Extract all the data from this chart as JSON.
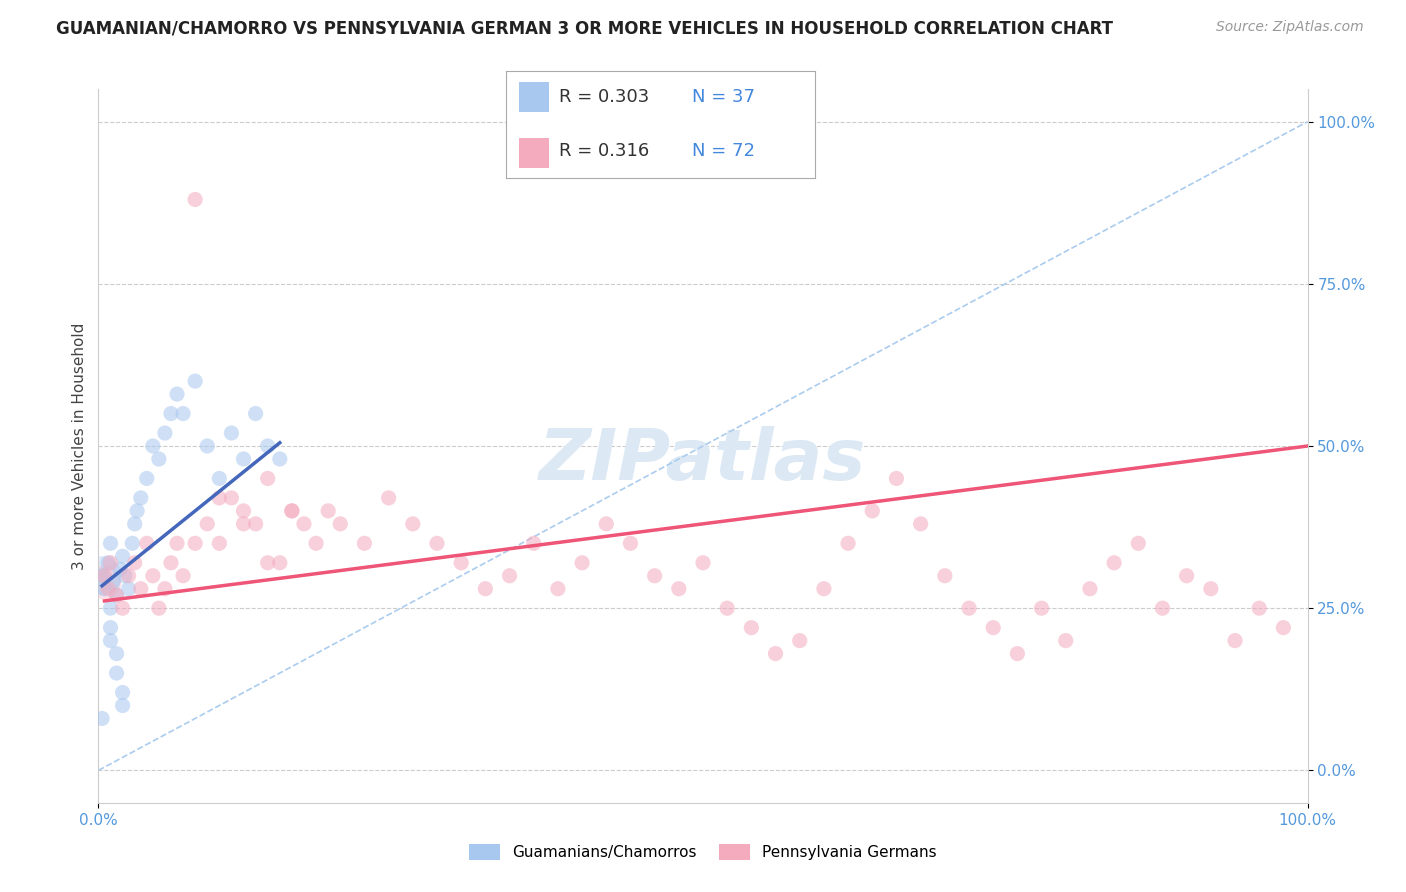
{
  "title": "GUAMANIAN/CHAMORRO VS PENNSYLVANIA GERMAN 3 OR MORE VEHICLES IN HOUSEHOLD CORRELATION CHART",
  "source": "Source: ZipAtlas.com",
  "ylabel": "3 or more Vehicles in Household",
  "xlim": [
    0,
    100
  ],
  "ylim": [
    -5,
    105
  ],
  "yticks": [
    0,
    25,
    50,
    75,
    100
  ],
  "ytick_labels": [
    "0.0%",
    "25.0%",
    "50.0%",
    "75.0%",
    "100.0%"
  ],
  "xtick_labels": [
    "0.0%",
    "100.0%"
  ],
  "legend_blue_r": "R = 0.303",
  "legend_blue_n": "N = 37",
  "legend_pink_r": "R = 0.316",
  "legend_pink_n": "N = 72",
  "blue_label": "Guamanians/Chamorros",
  "pink_label": "Pennsylvania Germans",
  "blue_color": "#A8C8F0",
  "pink_color": "#F4ABBE",
  "blue_line_color": "#4466BB",
  "pink_line_color": "#EE5577",
  "diag_color": "#AACCEE",
  "watermark_text": "ZIPatlas",
  "background_color": "#FFFFFF",
  "grid_color": "#CCCCCC",
  "title_fontsize": 12,
  "label_fontsize": 11,
  "tick_fontsize": 11,
  "source_fontsize": 10,
  "watermark_fontsize": 52,
  "watermark_color": "#DCE9F5",
  "legend_r_color": "#4466BB",
  "legend_fontsize": 13,
  "scatter_size": 120,
  "scatter_alpha": 0.55,
  "blue_x": [
    0.3,
    0.5,
    0.8,
    1.0,
    1.2,
    1.5,
    1.8,
    2.0,
    2.2,
    2.5,
    2.8,
    3.0,
    3.2,
    3.5,
    4.0,
    4.5,
    5.0,
    5.5,
    6.0,
    6.5,
    7.0,
    8.0,
    9.0,
    10.0,
    11.0,
    12.0,
    13.0,
    14.0,
    15.0,
    1.0,
    1.0,
    1.0,
    1.5,
    1.5,
    2.0,
    2.0,
    0.3
  ],
  "blue_y": [
    30,
    28,
    32,
    35,
    29,
    27,
    31,
    33,
    30,
    28,
    35,
    38,
    40,
    42,
    45,
    50,
    48,
    52,
    55,
    58,
    55,
    60,
    50,
    45,
    52,
    48,
    55,
    50,
    48,
    20,
    25,
    22,
    18,
    15,
    10,
    12,
    8
  ],
  "pink_x": [
    0.5,
    0.8,
    1.0,
    1.5,
    2.0,
    2.5,
    3.0,
    3.5,
    4.0,
    4.5,
    5.0,
    5.5,
    6.0,
    6.5,
    7.0,
    8.0,
    9.0,
    10.0,
    11.0,
    12.0,
    13.0,
    14.0,
    15.0,
    16.0,
    17.0,
    18.0,
    19.0,
    20.0,
    22.0,
    24.0,
    26.0,
    28.0,
    30.0,
    32.0,
    34.0,
    36.0,
    38.0,
    40.0,
    42.0,
    44.0,
    46.0,
    48.0,
    50.0,
    52.0,
    54.0,
    56.0,
    58.0,
    60.0,
    62.0,
    64.0,
    66.0,
    68.0,
    70.0,
    72.0,
    74.0,
    76.0,
    78.0,
    80.0,
    82.0,
    84.0,
    86.0,
    88.0,
    90.0,
    92.0,
    94.0,
    96.0,
    98.0,
    8.0,
    10.0,
    12.0,
    14.0,
    16.0
  ],
  "pink_y": [
    30,
    28,
    32,
    27,
    25,
    30,
    32,
    28,
    35,
    30,
    25,
    28,
    32,
    35,
    30,
    88,
    38,
    35,
    42,
    40,
    38,
    45,
    32,
    40,
    38,
    35,
    40,
    38,
    35,
    42,
    38,
    35,
    32,
    28,
    30,
    35,
    28,
    32,
    38,
    35,
    30,
    28,
    32,
    25,
    22,
    18,
    20,
    28,
    35,
    40,
    45,
    38,
    30,
    25,
    22,
    18,
    25,
    20,
    28,
    32,
    35,
    25,
    30,
    28,
    20,
    25,
    22,
    35,
    42,
    38,
    32,
    40
  ],
  "blue_trend_x": [
    0.3,
    15.0
  ],
  "blue_trend_y_intercept": 28.0,
  "blue_trend_slope": 1.5,
  "pink_trend_x": [
    0.5,
    100.0
  ],
  "pink_trend_y_intercept": 26.0,
  "pink_trend_slope": 0.24
}
